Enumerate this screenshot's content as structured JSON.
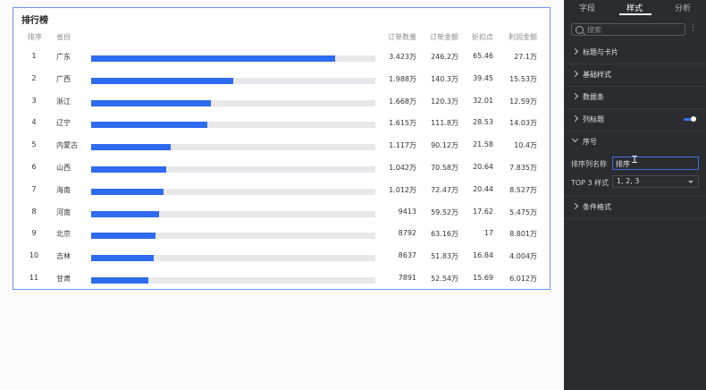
{
  "table": {
    "title": "排行榜",
    "headers": {
      "rank": "排序",
      "province": "省份",
      "orders": "订单数量",
      "amount": "订单金额",
      "discount": "折扣点",
      "profit": "利润金额"
    },
    "rows": [
      {
        "rank": "1",
        "province": "广东",
        "bar": 0.86,
        "orders": "3.423万",
        "amount": "246.2万",
        "discount": "65.46",
        "profit": "27.1万"
      },
      {
        "rank": "2",
        "province": "广西",
        "bar": 0.5,
        "orders": "1.988万",
        "amount": "140.3万",
        "discount": "39.45",
        "profit": "15.53万"
      },
      {
        "rank": "3",
        "province": "浙江",
        "bar": 0.42,
        "orders": "1.668万",
        "amount": "120.3万",
        "discount": "32.01",
        "profit": "12.59万"
      },
      {
        "rank": "4",
        "province": "辽宁",
        "bar": 0.41,
        "orders": "1.615万",
        "amount": "111.8万",
        "discount": "28.53",
        "profit": "14.03万"
      },
      {
        "rank": "5",
        "province": "内蒙古",
        "bar": 0.28,
        "orders": "1.117万",
        "amount": "90.12万",
        "discount": "21.58",
        "profit": "10.4万"
      },
      {
        "rank": "6",
        "province": "山西",
        "bar": 0.265,
        "orders": "1.042万",
        "amount": "70.58万",
        "discount": "20.64",
        "profit": "7.835万"
      },
      {
        "rank": "7",
        "province": "海南",
        "bar": 0.255,
        "orders": "1.012万",
        "amount": "72.47万",
        "discount": "20.44",
        "profit": "8.527万"
      },
      {
        "rank": "8",
        "province": "河南",
        "bar": 0.24,
        "orders": "9413",
        "amount": "59.52万",
        "discount": "17.62",
        "profit": "5.475万"
      },
      {
        "rank": "9",
        "province": "北京",
        "bar": 0.225,
        "orders": "8792",
        "amount": "63.16万",
        "discount": "17",
        "profit": "8.801万"
      },
      {
        "rank": "10",
        "province": "吉林",
        "bar": 0.22,
        "orders": "8637",
        "amount": "51.83万",
        "discount": "16.84",
        "profit": "4.004万"
      },
      {
        "rank": "11",
        "province": "甘肃",
        "bar": 0.2,
        "orders": "7891",
        "amount": "52.54万",
        "discount": "15.69",
        "profit": "6.012万"
      }
    ]
  },
  "panel": {
    "tabs": [
      "字段",
      "样式",
      "分析"
    ],
    "active_tab": "样式",
    "search_placeholder": "搜索",
    "more_icon": "⋮",
    "sections": {
      "title_card": "标题与卡片",
      "basic_style": "基础样式",
      "data_bar": "数据条",
      "column_title": "列标题",
      "serial": "序号",
      "condition": "条件格式"
    },
    "serial_name_label": "排序列名称",
    "serial_name_value": "排序",
    "top3_label": "TOP 3 样式",
    "top3_value": "1, 2, 3"
  },
  "colors": {
    "bar": "#2e6bf0",
    "track": "#e8e8ea",
    "panel_bg": "#2b2c30",
    "accent": "#3a6ff0"
  }
}
